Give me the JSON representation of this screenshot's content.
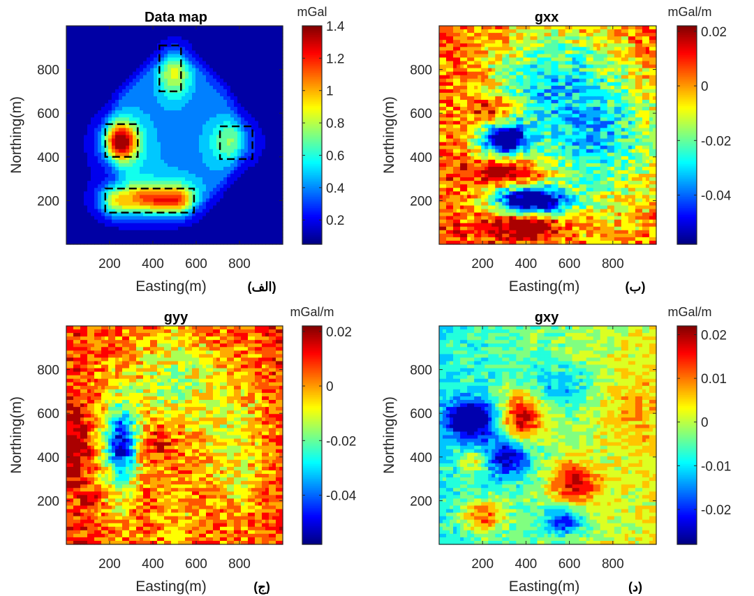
{
  "chart_data": [
    {
      "type": "heatmap",
      "title": "Data map",
      "xlabel": "Easting(m)",
      "ylabel": "Northing(m)",
      "panel_label": "(الف)",
      "xlim": [
        0,
        1000
      ],
      "ylim": [
        0,
        1000
      ],
      "xticks": [
        200,
        400,
        600,
        800
      ],
      "yticks": [
        200,
        400,
        600,
        800
      ],
      "xtick_labels": [
        "200",
        "400",
        "600",
        "800"
      ],
      "ytick_labels": [
        "200",
        "400",
        "600",
        "800"
      ],
      "colorbar": {
        "unit": "mGal",
        "range": [
          0.05,
          1.4
        ],
        "ticks": [
          0.2,
          0.4,
          0.6,
          0.8,
          1,
          1.2,
          1.4
        ],
        "tick_labels": [
          "0.2",
          "0.4",
          "0.6",
          "0.8",
          "1",
          "1.2",
          "1.4"
        ]
      },
      "colormap": "jet",
      "features": [
        {
          "kind": "peak",
          "x": 250,
          "y": 470,
          "value": 1.35
        },
        {
          "kind": "peak",
          "x": 500,
          "y": 790,
          "value": 0.6
        },
        {
          "kind": "peak",
          "x": 770,
          "y": 470,
          "value": 0.7
        },
        {
          "kind": "ridge",
          "x_from": 200,
          "x_to": 550,
          "y": 200,
          "value": 1.0
        }
      ],
      "annotations": [
        {
          "kind": "dashed-box",
          "x": [
            430,
            530
          ],
          "y": [
            700,
            910
          ]
        },
        {
          "kind": "dashed-box",
          "x": [
            180,
            330
          ],
          "y": [
            400,
            550
          ]
        },
        {
          "kind": "dashed-box",
          "x": [
            710,
            860
          ],
          "y": [
            390,
            540
          ]
        },
        {
          "kind": "dashed-box",
          "x": [
            180,
            590
          ],
          "y": [
            145,
            255
          ]
        }
      ]
    },
    {
      "type": "heatmap",
      "title": "gxx",
      "xlabel": "Easting(m)",
      "ylabel": "Northing(m)",
      "panel_label": "(ب)",
      "xlim": [
        0,
        1000
      ],
      "ylim": [
        0,
        1000
      ],
      "xticks": [
        200,
        400,
        600,
        800
      ],
      "yticks": [
        200,
        400,
        600,
        800
      ],
      "xtick_labels": [
        "200",
        "400",
        "600",
        "800"
      ],
      "ytick_labels": [
        "200",
        "400",
        "600",
        "800"
      ],
      "colorbar": {
        "unit": "mGal/m",
        "range": [
          -0.058,
          0.022
        ],
        "ticks": [
          -0.04,
          -0.02,
          0,
          0.02
        ],
        "tick_labels": [
          "-0.04",
          "-0.02",
          "0",
          "0.02"
        ]
      },
      "colormap": "jet",
      "features": [
        {
          "kind": "trough",
          "x": 300,
          "y": 480,
          "value": -0.05
        },
        {
          "kind": "trough",
          "x": 420,
          "y": 200,
          "value": -0.05
        },
        {
          "kind": "high",
          "x": 320,
          "y": 330,
          "value": 0.02
        },
        {
          "kind": "high",
          "x": 400,
          "y": 80,
          "value": 0.02
        },
        {
          "kind": "high",
          "x": 250,
          "y": 620,
          "value": 0.015
        }
      ]
    },
    {
      "type": "heatmap",
      "title": "gyy",
      "xlabel": "Easting(m)",
      "ylabel": "Northing(m)",
      "panel_label": "(ج)",
      "xlim": [
        0,
        1000
      ],
      "ylim": [
        0,
        1000
      ],
      "xticks": [
        200,
        400,
        600,
        800
      ],
      "yticks": [
        200,
        400,
        600,
        800
      ],
      "xtick_labels": [
        "200",
        "400",
        "600",
        "800"
      ],
      "ytick_labels": [
        "200",
        "400",
        "600",
        "800"
      ],
      "colorbar": {
        "unit": "mGal/m",
        "range": [
          -0.058,
          0.022
        ],
        "ticks": [
          -0.04,
          -0.02,
          0,
          0.02
        ],
        "tick_labels": [
          "-0.04",
          "-0.02",
          "0",
          "0.02"
        ]
      },
      "colormap": "jet",
      "features": [
        {
          "kind": "trough",
          "x": 260,
          "y": 450,
          "value": -0.05
        },
        {
          "kind": "high",
          "x": 30,
          "y": 440,
          "value": 0.018
        },
        {
          "kind": "high",
          "x": 430,
          "y": 470,
          "value": 0.018
        },
        {
          "kind": "high",
          "x": 110,
          "y": 200,
          "value": 0.015
        }
      ]
    },
    {
      "type": "heatmap",
      "title": "gxy",
      "xlabel": "Easting(m)",
      "ylabel": "Northing(m)",
      "panel_label": "(د)",
      "xlim": [
        0,
        1000
      ],
      "ylim": [
        0,
        1000
      ],
      "xticks": [
        200,
        400,
        600,
        800
      ],
      "yticks": [
        200,
        400,
        600,
        800
      ],
      "xtick_labels": [
        "200",
        "400",
        "600",
        "800"
      ],
      "ytick_labels": [
        "200",
        "400",
        "600",
        "800"
      ],
      "colorbar": {
        "unit": "mGal/m",
        "range": [
          -0.028,
          0.022
        ],
        "ticks": [
          -0.02,
          -0.01,
          0,
          0.01,
          0.02
        ],
        "tick_labels": [
          "-0.02",
          "-0.01",
          "0",
          "0.01",
          "0.02"
        ]
      },
      "colormap": "jet",
      "features": [
        {
          "kind": "trough",
          "x": 150,
          "y": 570,
          "value": -0.022
        },
        {
          "kind": "trough",
          "x": 320,
          "y": 400,
          "value": -0.022
        },
        {
          "kind": "trough",
          "x": 580,
          "y": 110,
          "value": -0.018
        },
        {
          "kind": "high",
          "x": 380,
          "y": 580,
          "value": 0.015
        },
        {
          "kind": "high",
          "x": 620,
          "y": 280,
          "value": 0.012
        },
        {
          "kind": "high",
          "x": 200,
          "y": 130,
          "value": 0.01
        },
        {
          "kind": "high",
          "x": 160,
          "y": 380,
          "value": 0.008
        }
      ]
    }
  ]
}
